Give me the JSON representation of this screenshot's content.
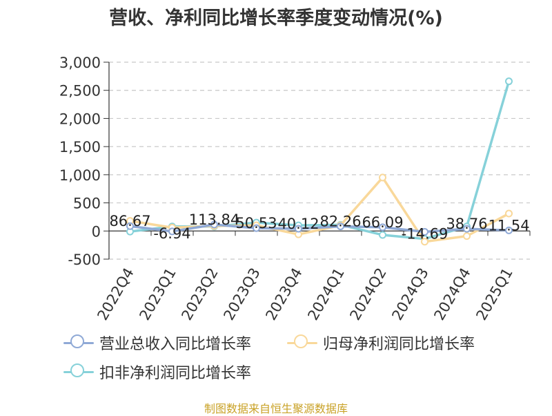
{
  "title": "营收、净利同比增长率季度变动情况(%)",
  "footer": "制图数据来自恒生聚源数据库",
  "chart_data": {
    "type": "line",
    "categories": [
      "2022Q4",
      "2023Q1",
      "2023Q2",
      "2023Q3",
      "2023Q4",
      "2024Q1",
      "2024Q2",
      "2024Q3",
      "2024Q4",
      "2025Q1"
    ],
    "ylim": [
      -500,
      3000
    ],
    "yticks": [
      -500,
      0,
      500,
      1000,
      1500,
      2000,
      2500,
      3000
    ],
    "ytick_labels": [
      "-500",
      "0",
      "500",
      "1,000",
      "1,500",
      "2,000",
      "2,500",
      "3,000"
    ],
    "grid": true,
    "legend_position": "bottom",
    "series": [
      {
        "name": "营业总收入同比增长率",
        "color": "#8fa9d6",
        "values": [
          86.67,
          -6.94,
          113.84,
          50.53,
          40.12,
          82.26,
          66.09,
          -14.69,
          38.76,
          11.54
        ],
        "labels": [
          "86.67",
          "-6.94",
          "113.84",
          "50.53",
          "40.12",
          "82.26",
          "66.09",
          "-14.69",
          "38.76",
          "11.54"
        ]
      },
      {
        "name": "归母净利润同比增长率",
        "color": "#f9d89a",
        "values": [
          180,
          60,
          90,
          100,
          -60,
          100,
          950,
          -190,
          -90,
          310
        ]
      },
      {
        "name": "扣非净利润同比增长率",
        "color": "#86d1d9",
        "values": [
          -10,
          80,
          80,
          150,
          100,
          110,
          -70,
          -140,
          80,
          2660
        ]
      }
    ]
  }
}
